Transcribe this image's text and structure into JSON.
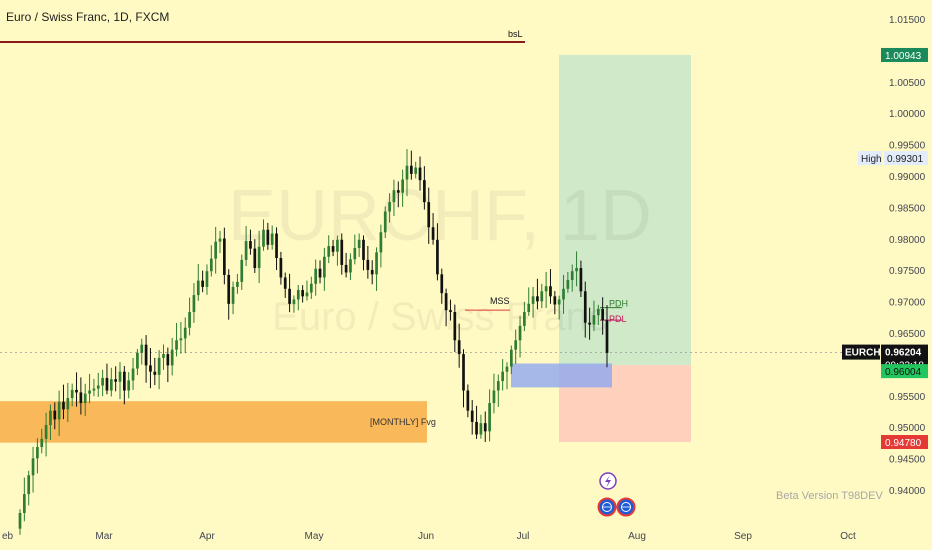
{
  "header": {
    "title": "Euro / Swiss Franc, 1D, FXCM"
  },
  "watermark": {
    "symbol": "EURCHF, 1D",
    "name": "Euro / Swiss Franc"
  },
  "footer": {
    "beta": "Beta Version T98DEV"
  },
  "colors": {
    "background": "#fff9c4",
    "up": "#2e7d32",
    "down": "#111111",
    "resistance": "#8b1a1a",
    "fvg": "#f9b454",
    "target_zone": "#c8e6c9",
    "stop_zone": "#ffccbc",
    "order_block": "#8fa8f0"
  },
  "chart_data": {
    "type": "candlestick",
    "symbol": "EURCHF",
    "timeframe": "1D",
    "y_axis": {
      "min": 0.936,
      "max": 1.018,
      "ticks": [
        "1.01500",
        "1.00500",
        "1.00000",
        "0.99500",
        "0.99000",
        "0.98500",
        "0.98000",
        "0.97500",
        "0.97000",
        "0.96500",
        "0.95500",
        "0.95000",
        "0.94500",
        "0.94000"
      ]
    },
    "x_axis": {
      "ticks": [
        "eb",
        "Mar",
        "Apr",
        "May",
        "Jun",
        "Jul",
        "Aug",
        "Sep",
        "Oct"
      ]
    },
    "price_labels": [
      {
        "id": "target",
        "text": "1.00943",
        "value": 1.00943,
        "color": "#1a8a5a"
      },
      {
        "id": "high",
        "label": "High",
        "text": "0.99301",
        "value": 0.99301,
        "color": "#e3ecfa"
      },
      {
        "id": "last",
        "label": "EURCHF",
        "text": "0.96204",
        "value": 0.96204,
        "countdown": "09:23:18",
        "color": "#111111"
      },
      {
        "id": "entry",
        "text": "0.96004",
        "value": 0.96004,
        "color": "#22c55e"
      },
      {
        "id": "stop",
        "text": "0.94780",
        "value": 0.9478,
        "color": "#e53935"
      }
    ],
    "annotations": [
      {
        "id": "bsl",
        "text": "bsL",
        "value": 1.0115
      },
      {
        "id": "mss",
        "text": "MSS",
        "value": 0.9688
      },
      {
        "id": "pdh",
        "text": "PDH",
        "value": 0.9692
      },
      {
        "id": "pdl",
        "text": "PDL",
        "value": 0.9672
      },
      {
        "id": "fvg",
        "text": "[MONTHLY] Fvg",
        "low": 0.9477,
        "high": 0.9543
      }
    ],
    "zones": {
      "target": {
        "low": 0.96004,
        "high": 1.00943
      },
      "stop": {
        "low": 0.9478,
        "high": 0.96004
      },
      "order_block": {
        "low": 0.9565,
        "high": 0.9603
      }
    },
    "closes": [
      0.9365,
      0.9395,
      0.9425,
      0.9452,
      0.947,
      0.9483,
      0.9505,
      0.9528,
      0.9514,
      0.9542,
      0.953,
      0.9548,
      0.9561,
      0.9557,
      0.954,
      0.9555,
      0.956,
      0.9563,
      0.9568,
      0.958,
      0.956,
      0.9578,
      0.9574,
      0.959,
      0.956,
      0.9576,
      0.9595,
      0.962,
      0.9633,
      0.96,
      0.959,
      0.9585,
      0.9612,
      0.9618,
      0.96,
      0.9625,
      0.964,
      0.9643,
      0.966,
      0.9685,
      0.9712,
      0.9735,
      0.9725,
      0.975,
      0.977,
      0.9797,
      0.9802,
      0.9744,
      0.9698,
      0.9725,
      0.9733,
      0.9768,
      0.9798,
      0.9786,
      0.9755,
      0.9789,
      0.9816,
      0.9792,
      0.981,
      0.9771,
      0.974,
      0.9722,
      0.9698,
      0.9705,
      0.972,
      0.971,
      0.9716,
      0.973,
      0.9754,
      0.974,
      0.9773,
      0.979,
      0.9781,
      0.98,
      0.976,
      0.9748,
      0.9769,
      0.9787,
      0.98,
      0.9768,
      0.9752,
      0.9745,
      0.978,
      0.9812,
      0.9845,
      0.986,
      0.9879,
      0.9875,
      0.9896,
      0.9918,
      0.9905,
      0.9915,
      0.9895,
      0.986,
      0.982,
      0.98,
      0.9745,
      0.9715,
      0.9688,
      0.9685,
      0.964,
      0.9618,
      0.956,
      0.9528,
      0.951,
      0.949,
      0.9508,
      0.9495,
      0.954,
      0.956,
      0.9575,
      0.959,
      0.9598,
      0.9625,
      0.964,
      0.9663,
      0.9685,
      0.9698,
      0.971,
      0.9702,
      0.9718,
      0.9726,
      0.971,
      0.9697,
      0.9705,
      0.9722,
      0.9736,
      0.975,
      0.9755,
      0.9718,
      0.9668,
      0.9665,
      0.968,
      0.969,
      0.9672,
      0.962
    ]
  }
}
